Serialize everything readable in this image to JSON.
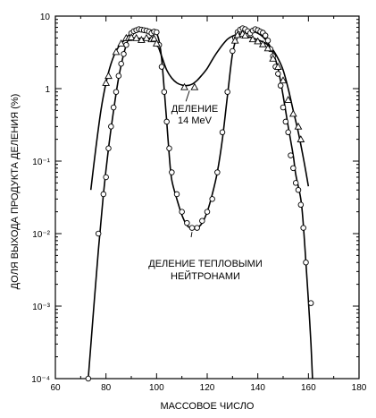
{
  "chart_data": {
    "type": "line",
    "xlabel": "МАССОВОЕ ЧИСЛО",
    "ylabel": "ДОЛЯ ВЫХОДА ПРОДУКТА ДЕЛЕНИЯ (%)",
    "xlim": [
      60,
      180
    ],
    "ylim": [
      0.0001,
      10
    ],
    "yscale": "log",
    "grid": false,
    "x_ticks": [
      "60",
      "80",
      "100",
      "120",
      "140",
      "160",
      "180"
    ],
    "y_ticks": [
      {
        "value": 10,
        "label": "10"
      },
      {
        "value": 1,
        "label": "1"
      },
      {
        "value": 0.1,
        "label": "10⁻¹"
      },
      {
        "value": 0.01,
        "label": "10⁻²"
      },
      {
        "value": 0.001,
        "label": "10⁻³"
      },
      {
        "value": 0.0001,
        "label": "10⁻⁴"
      }
    ],
    "series": [
      {
        "marker": "circle",
        "curve": [
          [
            73,
            0.0001
          ],
          [
            75,
            0.0008
          ],
          [
            77,
            0.006
          ],
          [
            79,
            0.035
          ],
          [
            81,
            0.15
          ],
          [
            83,
            0.5
          ],
          [
            85,
            1.4
          ],
          [
            87,
            3.0
          ],
          [
            89,
            5.0
          ],
          [
            91,
            6.3
          ],
          [
            93,
            6.6
          ],
          [
            95,
            6.7
          ],
          [
            97,
            6.5
          ],
          [
            99,
            6.2
          ],
          [
            100,
            5.8
          ],
          [
            101,
            4.5
          ],
          [
            102,
            2.6
          ],
          [
            103,
            1.0
          ],
          [
            104,
            0.35
          ],
          [
            105,
            0.12
          ],
          [
            106,
            0.055
          ],
          [
            108,
            0.03
          ],
          [
            110,
            0.018
          ],
          [
            112,
            0.013
          ],
          [
            114,
            0.0118
          ],
          [
            116,
            0.012
          ],
          [
            118,
            0.014
          ],
          [
            120,
            0.02
          ],
          [
            122,
            0.035
          ],
          [
            124,
            0.07
          ],
          [
            126,
            0.2
          ],
          [
            128,
            0.8
          ],
          [
            130,
            3.0
          ],
          [
            132,
            5.5
          ],
          [
            134,
            6.6
          ],
          [
            136,
            6.5
          ],
          [
            138,
            6.2
          ],
          [
            140,
            5.8
          ],
          [
            142,
            5.2
          ],
          [
            144,
            4.3
          ],
          [
            146,
            3.1
          ],
          [
            148,
            1.9
          ],
          [
            150,
            0.8
          ],
          [
            152,
            0.3
          ],
          [
            154,
            0.12
          ],
          [
            155,
            0.065
          ],
          [
            157,
            0.03
          ],
          [
            158,
            0.013
          ],
          [
            159,
            0.004
          ],
          [
            160,
            0.0012
          ],
          [
            161,
            0.0003
          ],
          [
            161.6,
            0.0001
          ]
        ],
        "points": [
          [
            73,
            0.0001
          ],
          [
            77,
            0.01
          ],
          [
            79,
            0.035
          ],
          [
            80,
            0.06
          ],
          [
            81,
            0.15
          ],
          [
            82,
            0.3
          ],
          [
            83,
            0.55
          ],
          [
            84,
            0.9
          ],
          [
            85,
            1.5
          ],
          [
            86,
            2.2
          ],
          [
            87,
            3.0
          ],
          [
            88,
            4.0
          ],
          [
            89,
            5.0
          ],
          [
            90,
            5.8
          ],
          [
            91,
            6.2
          ],
          [
            92,
            6.4
          ],
          [
            93,
            6.6
          ],
          [
            94,
            6.5
          ],
          [
            95,
            6.4
          ],
          [
            96,
            6.3
          ],
          [
            97,
            6.1
          ],
          [
            98,
            5.8
          ],
          [
            99,
            6.1
          ],
          [
            100,
            6.0
          ],
          [
            101,
            4.0
          ],
          [
            102,
            2.0
          ],
          [
            103,
            0.9
          ],
          [
            104,
            0.35
          ],
          [
            105,
            0.15
          ],
          [
            106,
            0.07
          ],
          [
            108,
            0.035
          ],
          [
            110,
            0.02
          ],
          [
            112,
            0.014
          ],
          [
            114,
            0.012
          ],
          [
            116,
            0.012
          ],
          [
            118,
            0.015
          ],
          [
            120,
            0.02
          ],
          [
            122,
            0.03
          ],
          [
            124,
            0.07
          ],
          [
            126,
            0.25
          ],
          [
            128,
            0.9
          ],
          [
            130,
            3.3
          ],
          [
            131,
            5.0
          ],
          [
            132,
            6.0
          ],
          [
            133,
            6.5
          ],
          [
            134,
            6.8
          ],
          [
            135,
            6.6
          ],
          [
            136,
            6.2
          ],
          [
            137,
            5.8
          ],
          [
            138,
            6.3
          ],
          [
            139,
            6.6
          ],
          [
            140,
            6.4
          ],
          [
            141,
            6.1
          ],
          [
            142,
            5.9
          ],
          [
            143,
            5.4
          ],
          [
            144,
            4.6
          ],
          [
            145,
            3.5
          ],
          [
            146,
            2.8
          ],
          [
            147,
            2.0
          ],
          [
            148,
            1.6
          ],
          [
            149,
            1.1
          ],
          [
            150,
            0.55
          ],
          [
            151,
            0.35
          ],
          [
            152,
            0.25
          ],
          [
            153,
            0.12
          ],
          [
            154,
            0.08
          ],
          [
            155,
            0.05
          ],
          [
            156,
            0.04
          ],
          [
            157,
            0.025
          ],
          [
            158,
            0.012
          ],
          [
            159,
            0.004
          ],
          [
            161,
            0.0011
          ]
        ]
      },
      {
        "marker": "triangle",
        "curve": [
          [
            74,
            0.04
          ],
          [
            76,
            0.15
          ],
          [
            78,
            0.5
          ],
          [
            80,
            1.2
          ],
          [
            82,
            2.2
          ],
          [
            84,
            3.3
          ],
          [
            86,
            4.2
          ],
          [
            88,
            4.8
          ],
          [
            90,
            5.0
          ],
          [
            92,
            5.0
          ],
          [
            94,
            4.9
          ],
          [
            96,
            4.9
          ],
          [
            98,
            5.0
          ],
          [
            99,
            4.9
          ],
          [
            100,
            4.4
          ],
          [
            102,
            2.8
          ],
          [
            104,
            1.8
          ],
          [
            106,
            1.4
          ],
          [
            108,
            1.2
          ],
          [
            110,
            1.12
          ],
          [
            112,
            1.1
          ],
          [
            114,
            1.15
          ],
          [
            116,
            1.3
          ],
          [
            118,
            1.55
          ],
          [
            120,
            1.9
          ],
          [
            122,
            2.5
          ],
          [
            124,
            3.2
          ],
          [
            126,
            4.0
          ],
          [
            128,
            4.8
          ],
          [
            130,
            5.3
          ],
          [
            132,
            5.6
          ],
          [
            134,
            5.5
          ],
          [
            136,
            5.2
          ],
          [
            138,
            5.0
          ],
          [
            140,
            4.7
          ],
          [
            142,
            4.4
          ],
          [
            144,
            4.0
          ],
          [
            146,
            3.4
          ],
          [
            148,
            2.6
          ],
          [
            150,
            1.8
          ],
          [
            152,
            1.0
          ],
          [
            154,
            0.5
          ],
          [
            156,
            0.25
          ],
          [
            158,
            0.11
          ],
          [
            160,
            0.045
          ]
        ],
        "points": [
          [
            80,
            1.2
          ],
          [
            81,
            1.5
          ],
          [
            84,
            3.2
          ],
          [
            86,
            4.2
          ],
          [
            88,
            5.0
          ],
          [
            89,
            5.0
          ],
          [
            90,
            5.1
          ],
          [
            92,
            5.0
          ],
          [
            94,
            4.7
          ],
          [
            96,
            5.0
          ],
          [
            98,
            4.8
          ],
          [
            99,
            4.9
          ],
          [
            100,
            4.2
          ],
          [
            111,
            1.05
          ],
          [
            115,
            1.05
          ],
          [
            131,
            4.6
          ],
          [
            132,
            5.5
          ],
          [
            134,
            5.7
          ],
          [
            135,
            5.4
          ],
          [
            138,
            4.8
          ],
          [
            140,
            4.5
          ],
          [
            142,
            4.1
          ],
          [
            144,
            3.6
          ],
          [
            146,
            2.6
          ],
          [
            148,
            2.0
          ],
          [
            150,
            1.3
          ],
          [
            152,
            0.7
          ],
          [
            154,
            0.45
          ],
          [
            156,
            0.3
          ],
          [
            157,
            0.2
          ]
        ]
      }
    ],
    "annotations": [
      {
        "lines": [
          "ДЕЛЕНИЕ",
          "14 MeV"
        ]
      },
      {
        "lines": [
          "ДЕЛЕНИЕ ТЕПЛОВЫМИ",
          "НЕЙТРОНАМИ"
        ]
      }
    ]
  }
}
